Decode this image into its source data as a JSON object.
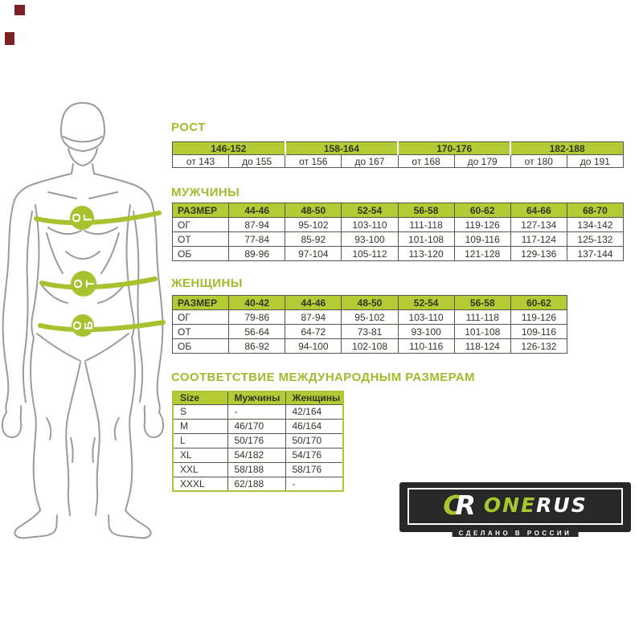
{
  "figure": {
    "chest_label": "ОГ",
    "waist_label": "ОТ",
    "hips_label": "ОБ"
  },
  "rost": {
    "title": "РОСТ",
    "header": [
      "146-152",
      "158-164",
      "170-176",
      "182-188"
    ],
    "row": [
      "от 143",
      "до 155",
      "от 156",
      "до 167",
      "от 168",
      "до 179",
      "от 180",
      "до 191"
    ]
  },
  "men": {
    "title": "МУЖЧИНЫ",
    "header": [
      "РАЗМЕР",
      "44-46",
      "48-50",
      "52-54",
      "56-58",
      "60-62",
      "64-66",
      "68-70"
    ],
    "rows": [
      [
        "ОГ",
        "87-94",
        "95-102",
        "103-110",
        "111-118",
        "119-126",
        "127-134",
        "134-142"
      ],
      [
        "ОТ",
        "77-84",
        "85-92",
        "93-100",
        "101-108",
        "109-116",
        "117-124",
        "125-132"
      ],
      [
        "ОБ",
        "89-96",
        "97-104",
        "105-112",
        "113-120",
        "121-128",
        "129-136",
        "137-144"
      ]
    ]
  },
  "women": {
    "title": "ЖЕНЩИНЫ",
    "header": [
      "РАЗМЕР",
      "40-42",
      "44-46",
      "48-50",
      "52-54",
      "56-58",
      "60-62"
    ],
    "rows": [
      [
        "ОГ",
        "79-86",
        "87-94",
        "95-102",
        "103-110",
        "111-118",
        "119-126"
      ],
      [
        "ОТ",
        "56-64",
        "64-72",
        "73-81",
        "93-100",
        "101-108",
        "109-116"
      ],
      [
        "ОБ",
        "86-92",
        "94-100",
        "102-108",
        "110-116",
        "118-124",
        "126-132"
      ]
    ]
  },
  "intl": {
    "title": "СООТВЕТСТВИЕ МЕЖДУНАРОДНЫМ РАЗМЕРАМ",
    "header": [
      "Size",
      "Мужчины",
      "Женщины"
    ],
    "rows": [
      [
        "S",
        "-",
        "42/164"
      ],
      [
        "M",
        "46/170",
        "46/164"
      ],
      [
        "L",
        "50/176",
        "50/170"
      ],
      [
        "XL",
        "54/182",
        "54/176"
      ],
      [
        "XXL",
        "58/188",
        "58/176"
      ],
      [
        "XXXL",
        "62/188",
        "-"
      ]
    ]
  },
  "logo": {
    "mark_c": "C",
    "mark_r": "R",
    "brand_green": "ONE",
    "brand_white": "RUS",
    "tagline": "СДЕЛАНО В РОССИИ"
  },
  "colors": {
    "accent_green": "#b5cb35",
    "title_green": "#a2bb2e",
    "band_green": "#a6c22f",
    "table_border": "#56564b",
    "logo_bg": "#282828",
    "mark_red": "#7c2123"
  }
}
